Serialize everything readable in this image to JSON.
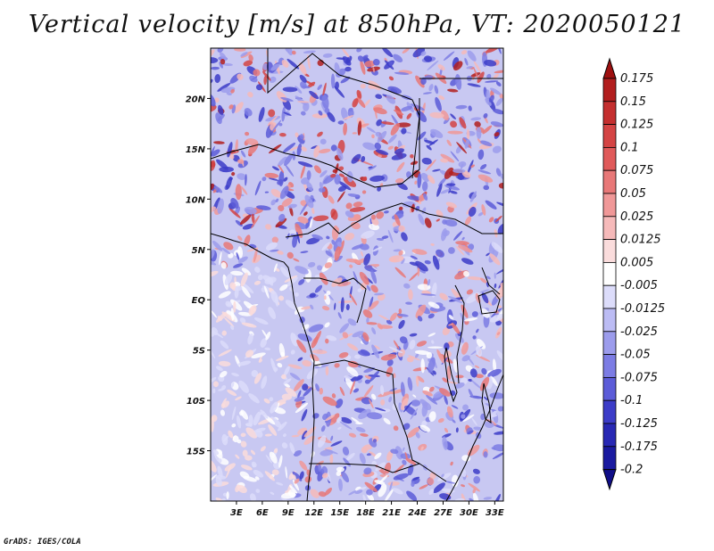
{
  "title": "Vertical velocity [m/s] at 850hPa, VT: 2020050121",
  "footer": "GrADS: IGES/COLA",
  "map": {
    "lat_labels": [
      "20N",
      "15N",
      "10N",
      "5N",
      "EQ",
      "5S",
      "10S",
      "15S"
    ],
    "lon_labels": [
      "3E",
      "6E",
      "9E",
      "12E",
      "15E",
      "18E",
      "21E",
      "24E",
      "27E",
      "30E",
      "33E"
    ],
    "lat_values": [
      20,
      15,
      10,
      5,
      0,
      -5,
      -10,
      -15
    ],
    "lon_values": [
      3,
      6,
      9,
      12,
      15,
      18,
      21,
      24,
      27,
      30,
      33
    ],
    "extent": {
      "lon_min": 0,
      "lon_max": 34,
      "lat_min": -20,
      "lat_max": 25
    }
  },
  "colorbar": {
    "levels": [
      "0.175",
      "0.15",
      "0.125",
      "0.1",
      "0.075",
      "0.05",
      "0.025",
      "0.0125",
      "0.005",
      "-0.005",
      "-0.0125",
      "-0.025",
      "-0.05",
      "-0.075",
      "-0.1",
      "-0.125",
      "-0.175",
      "-0.2"
    ],
    "colors": [
      "#9e1010",
      "#b21e1e",
      "#c42f2f",
      "#d44444",
      "#e05a5a",
      "#e87878",
      "#f09898",
      "#f6baba",
      "#fadcdc",
      "#ffffff",
      "#dcdcfa",
      "#bcbcf4",
      "#9c9cec",
      "#7c7ce4",
      "#5c5cd8",
      "#3c3cc8",
      "#2828b4",
      "#1a1aa0",
      "#100e88"
    ]
  }
}
